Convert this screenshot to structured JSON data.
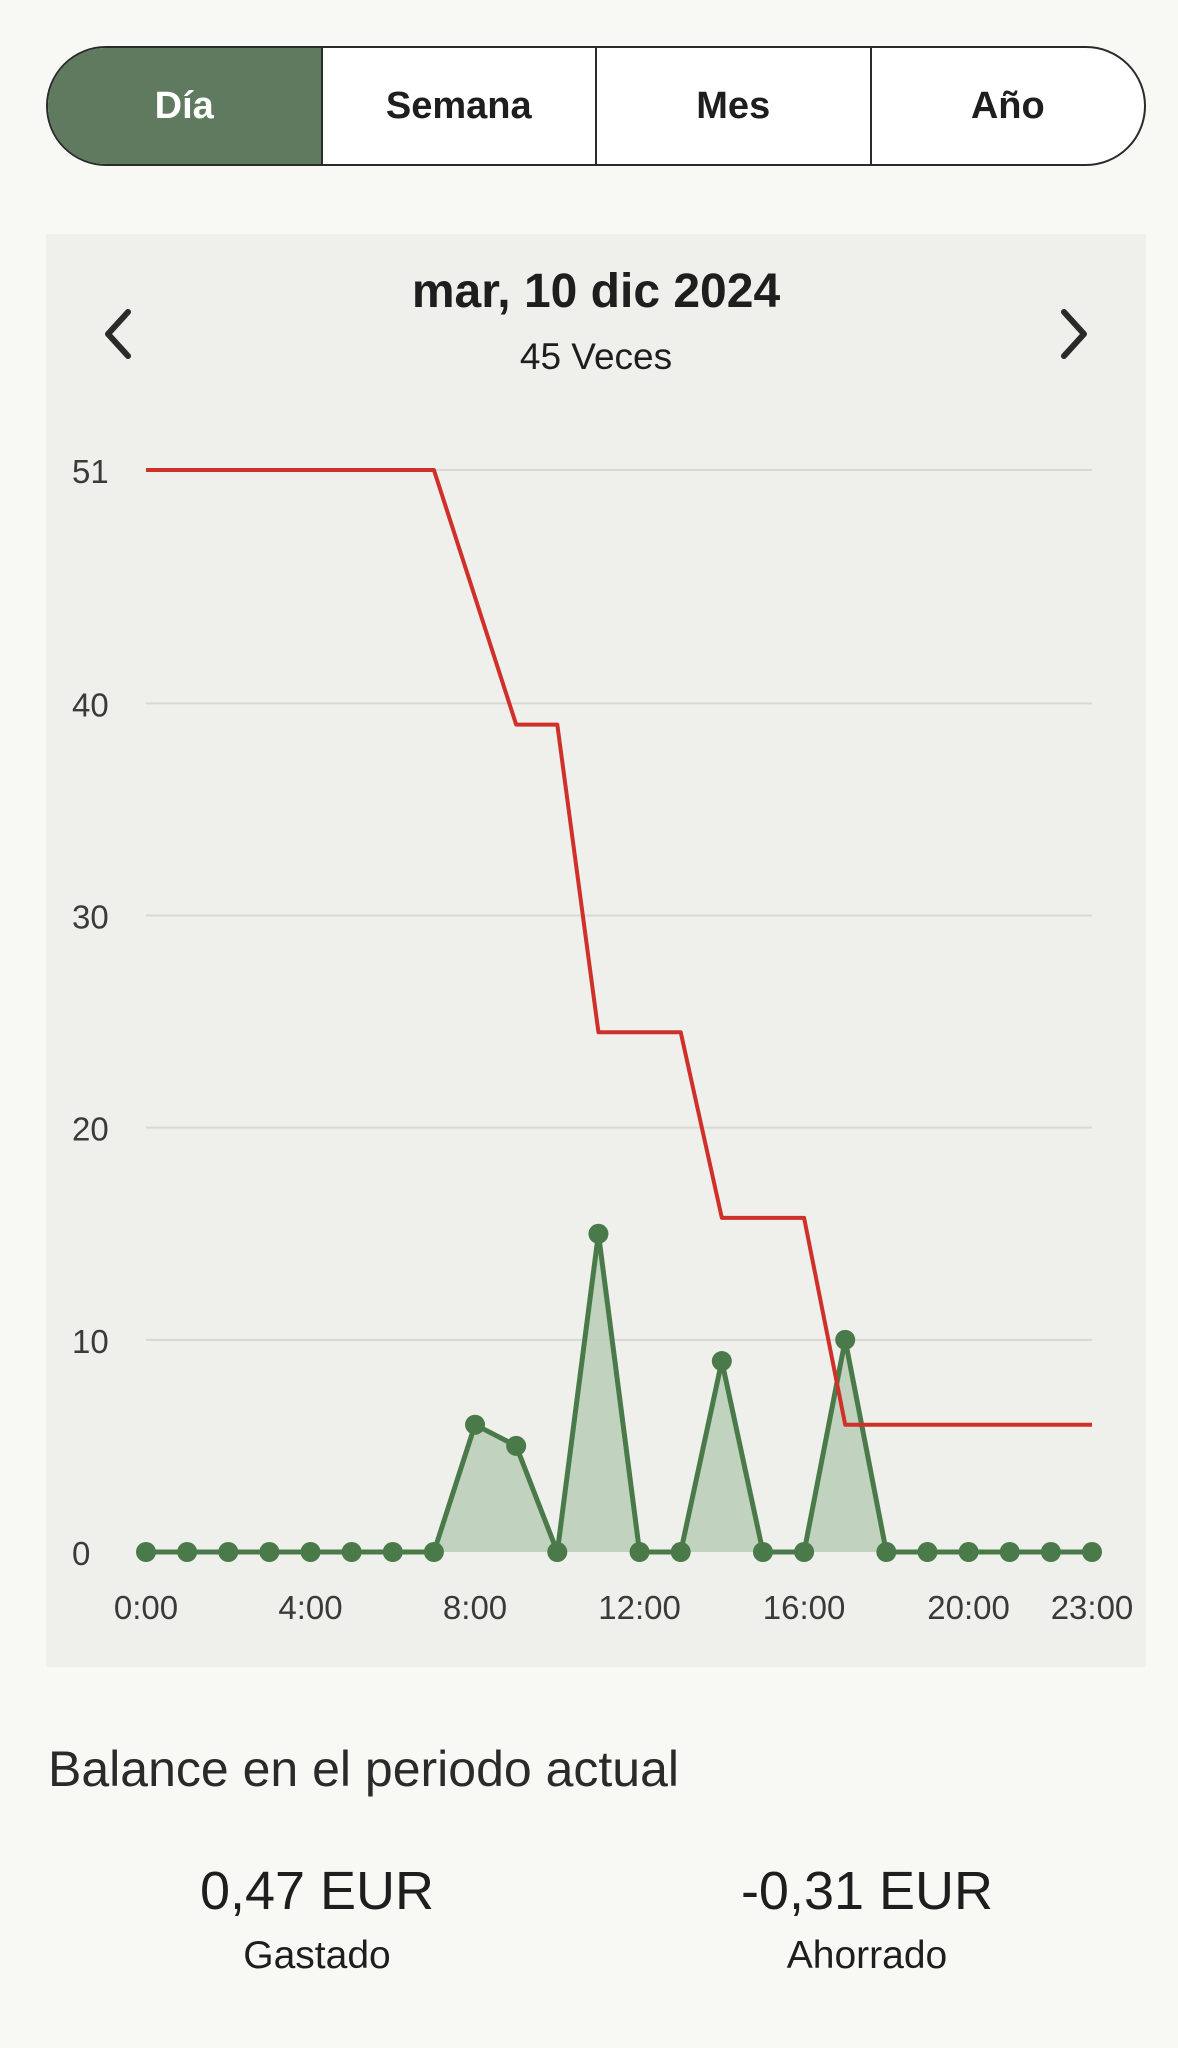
{
  "tabs": [
    {
      "label": "Día",
      "active": true
    },
    {
      "label": "Semana",
      "active": false
    },
    {
      "label": "Mes",
      "active": false
    },
    {
      "label": "Año",
      "active": false
    }
  ],
  "header": {
    "date": "mar, 10 dic 2024",
    "count": "45 Veces",
    "prev_icon": "chevron-left-icon",
    "next_icon": "chevron-right-icon"
  },
  "chart_data": {
    "type": "line",
    "x": [
      0,
      1,
      2,
      3,
      4,
      5,
      6,
      7,
      8,
      9,
      10,
      11,
      12,
      13,
      14,
      15,
      16,
      17,
      18,
      19,
      20,
      21,
      22,
      23
    ],
    "x_tick_values": [
      0,
      4,
      8,
      12,
      16,
      20,
      23
    ],
    "x_tick_labels": [
      "0:00",
      "4:00",
      "8:00",
      "12:00",
      "16:00",
      "20:00",
      "23:00"
    ],
    "y_ticks": [
      0,
      10,
      20,
      30,
      40,
      51
    ],
    "ylim": [
      0,
      51
    ],
    "grid": true,
    "series": [
      {
        "kind": "area-line",
        "color": "#4a7a49",
        "fill": "#b8ccb6",
        "values": [
          0,
          0,
          0,
          0,
          0,
          0,
          0,
          0,
          6,
          5,
          0,
          15,
          0,
          0,
          9,
          0,
          0,
          10,
          0,
          0,
          0,
          0,
          0,
          0
        ]
      },
      {
        "kind": "step-line",
        "color": "#d0302a",
        "values": [
          51,
          51,
          51,
          51,
          51,
          51,
          51,
          51,
          45,
          39,
          39,
          24.5,
          24.5,
          24.5,
          15.75,
          15.75,
          15.75,
          6,
          6,
          6,
          6,
          6,
          6,
          6
        ]
      }
    ]
  },
  "balance": {
    "title": "Balance en el periodo actual",
    "spent_amount": "0,47 EUR",
    "spent_label": "Gastado",
    "saved_amount": "-0,31 EUR",
    "saved_label": "Ahorrado"
  }
}
